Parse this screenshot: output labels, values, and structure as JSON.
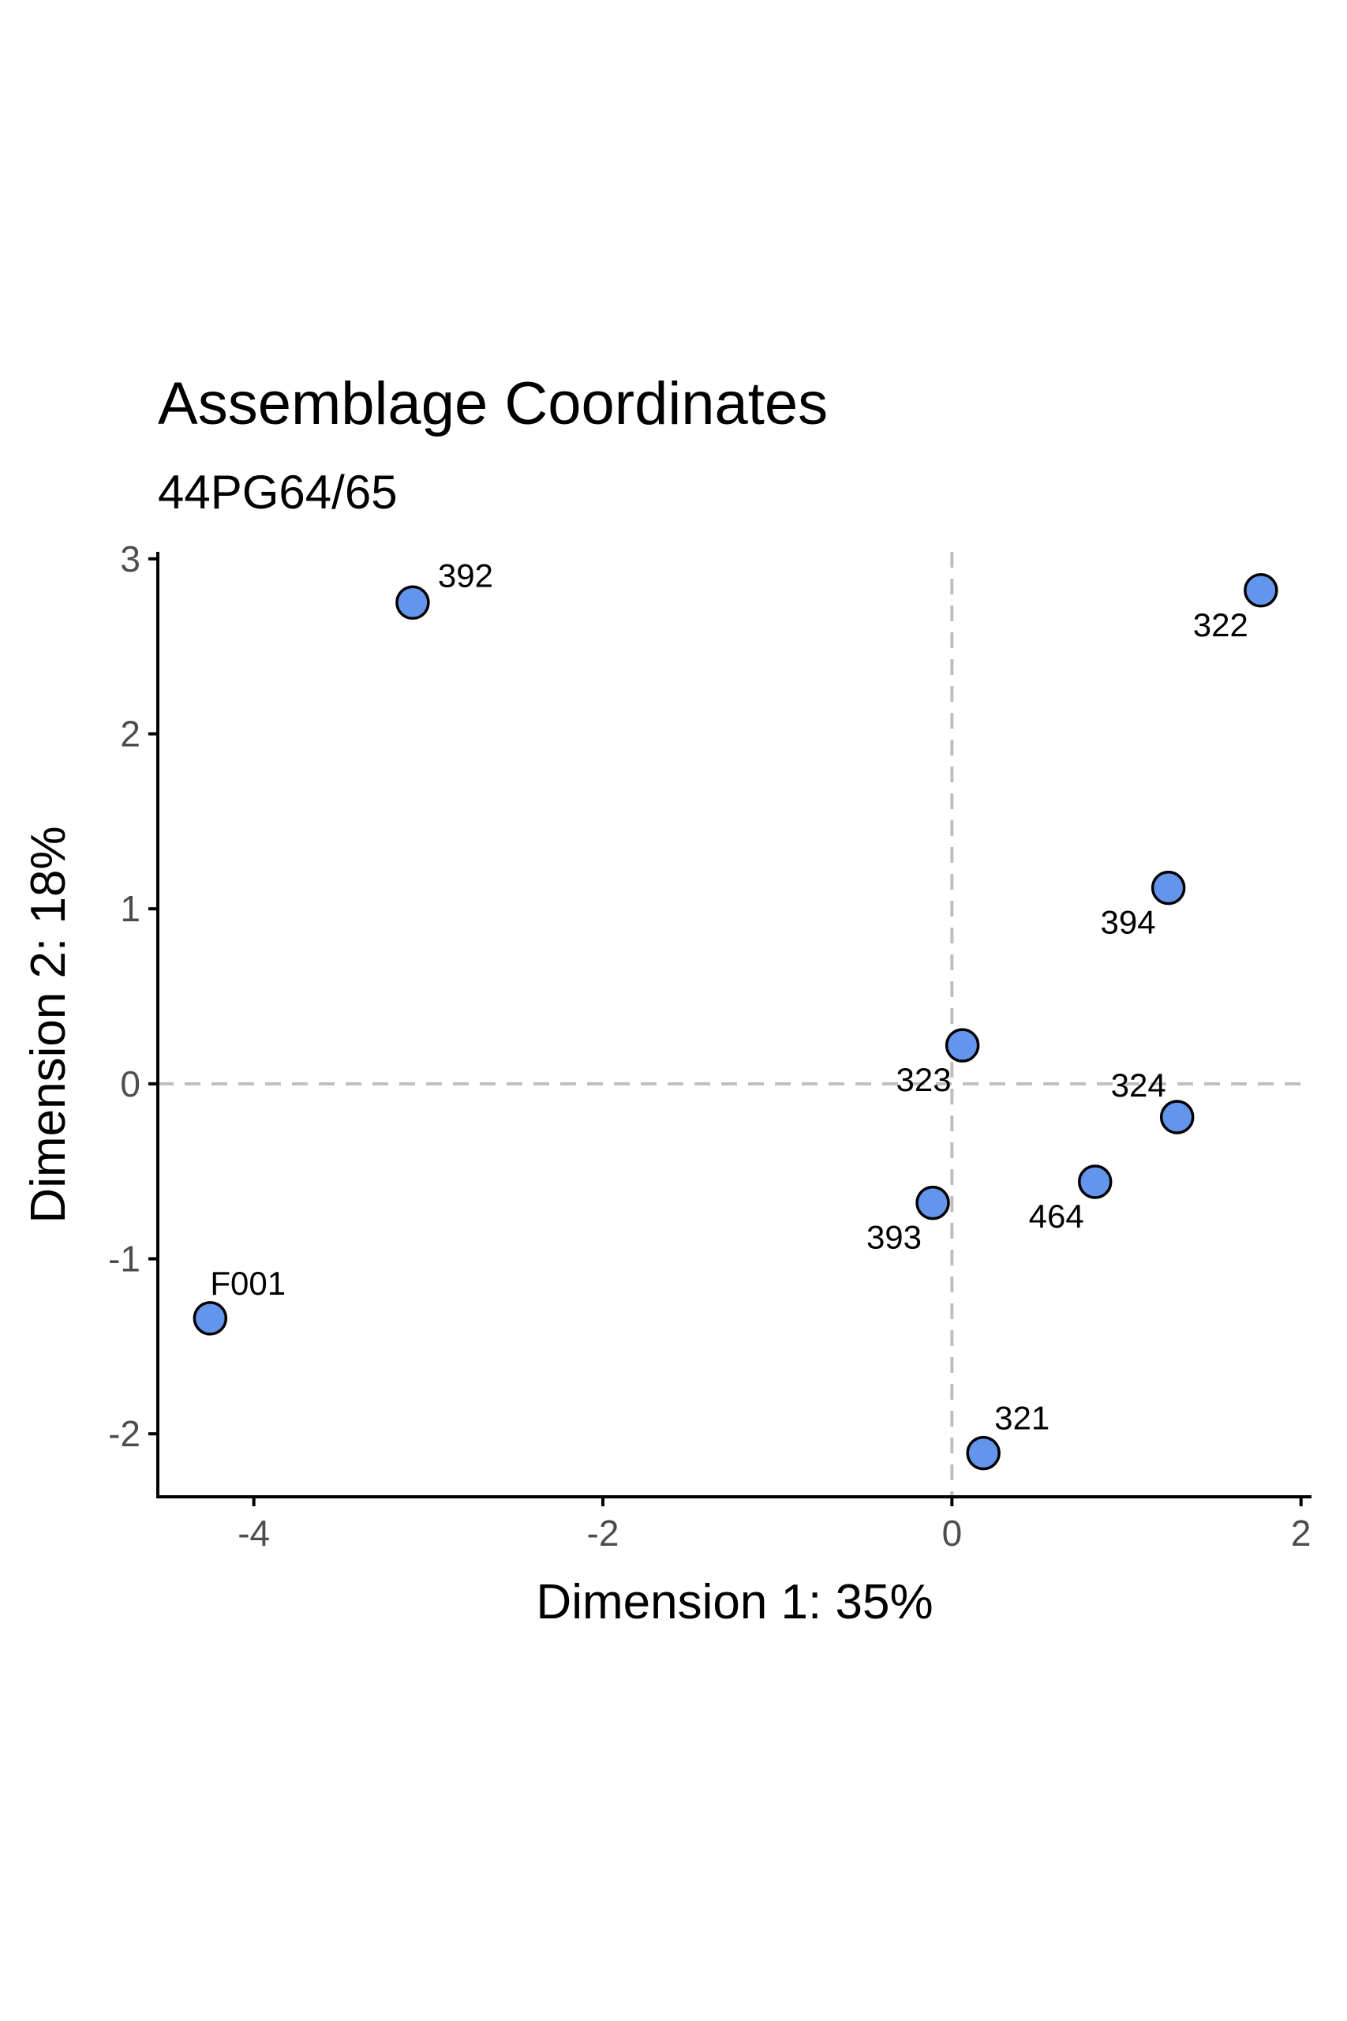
{
  "chart_data": {
    "type": "scatter",
    "title": "Assemblage Coordinates",
    "subtitle": "44PG64/65",
    "xlabel": "Dimension 1:  35%",
    "ylabel": "Dimension 2:  18%",
    "xlim": [
      -4.55,
      2.06
    ],
    "ylim": [
      -2.36,
      3.04
    ],
    "xticks": [
      -4,
      -2,
      0,
      2
    ],
    "yticks": [
      -2,
      -1,
      0,
      1,
      2,
      3
    ],
    "xtick_labels": [
      "-4",
      "-2",
      "0",
      "2"
    ],
    "ytick_labels": [
      "-2",
      "-1",
      "0",
      "1",
      "2",
      "3"
    ],
    "reference_lines": {
      "x": 0,
      "y": 0,
      "style": "dashed"
    },
    "grid": false,
    "point_color": "#6495ED",
    "points": [
      {
        "label": "392",
        "x": -3.09,
        "y": 2.75
      },
      {
        "label": "322",
        "x": 1.77,
        "y": 2.82
      },
      {
        "label": "394",
        "x": 1.24,
        "y": 1.12
      },
      {
        "label": "323",
        "x": 0.06,
        "y": 0.22
      },
      {
        "label": "324",
        "x": 1.29,
        "y": -0.19
      },
      {
        "label": "464",
        "x": 0.82,
        "y": -0.56
      },
      {
        "label": "393",
        "x": -0.11,
        "y": -0.68
      },
      {
        "label": "F001",
        "x": -4.25,
        "y": -1.34
      },
      {
        "label": "321",
        "x": 0.18,
        "y": -2.11
      }
    ]
  }
}
